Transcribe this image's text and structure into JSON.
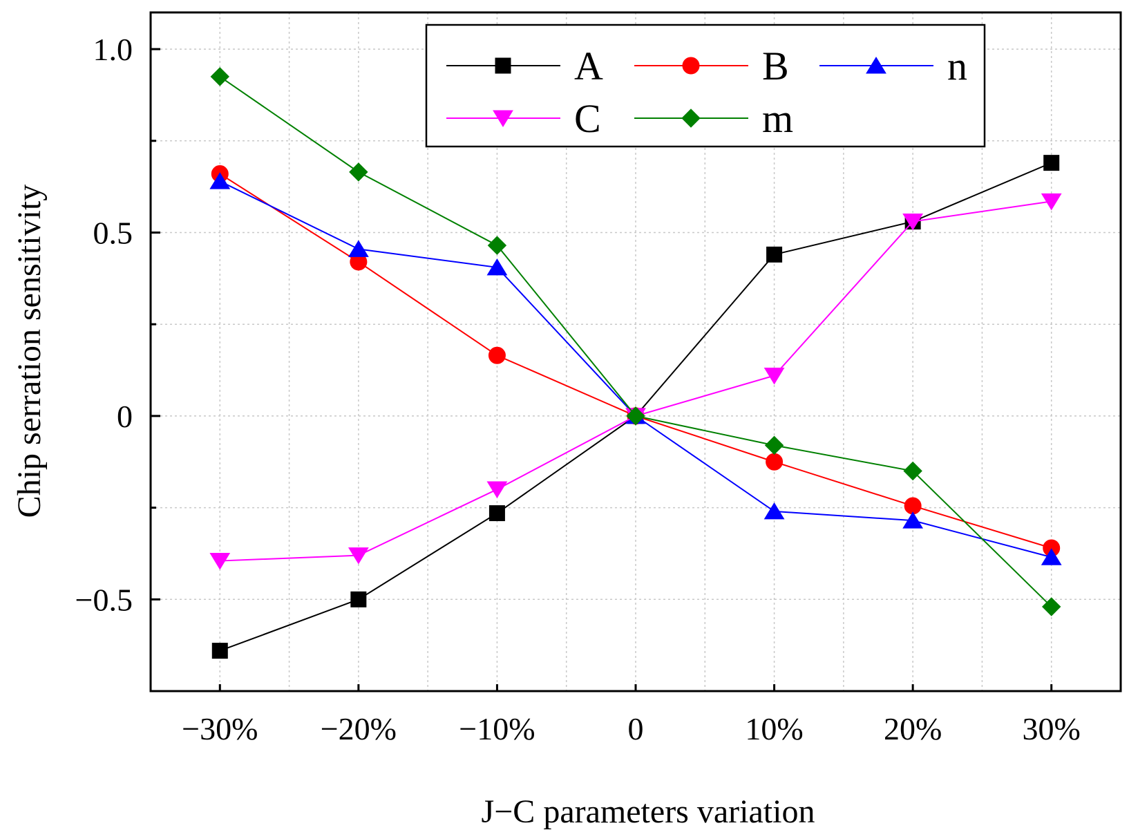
{
  "chart_data": {
    "type": "line",
    "title": "",
    "xlabel": "J−C parameters variation",
    "ylabel": "Chip serration sensitivity",
    "categories": [
      "−30%",
      "−20%",
      "−10%",
      "0",
      "10%",
      "20%",
      "30%"
    ],
    "x": [
      -30,
      -20,
      -10,
      0,
      10,
      20,
      30
    ],
    "xlim": [
      -35,
      35
    ],
    "ylim": [
      -0.75,
      1.1
    ],
    "yticks": [
      -0.5,
      0,
      0.5,
      1.0
    ],
    "ytick_labels": [
      "−0.5",
      "0",
      "0.5",
      "1.0"
    ],
    "minor_yticks": [
      -0.75,
      -0.25,
      0.25,
      0.75
    ],
    "grid": true,
    "legend_position": "top-center",
    "series": [
      {
        "name": "A",
        "color": "#000000",
        "marker": "square",
        "values": [
          -0.64,
          -0.5,
          -0.265,
          0,
          0.44,
          0.53,
          0.69
        ]
      },
      {
        "name": "B",
        "color": "#ff0000",
        "marker": "circle",
        "values": [
          0.66,
          0.42,
          0.165,
          0,
          -0.125,
          -0.245,
          -0.36
        ]
      },
      {
        "name": "n",
        "color": "#0000ff",
        "marker": "triangle-up",
        "values": [
          0.64,
          0.455,
          0.405,
          0,
          -0.26,
          -0.285,
          -0.385
        ]
      },
      {
        "name": "C",
        "color": "#ff00ff",
        "marker": "triangle-down",
        "values": [
          -0.395,
          -0.38,
          -0.2,
          0,
          0.11,
          0.53,
          0.585
        ]
      },
      {
        "name": "m",
        "color": "#008000",
        "marker": "diamond",
        "values": [
          0.925,
          0.665,
          0.465,
          0,
          -0.08,
          -0.15,
          -0.52
        ]
      }
    ]
  }
}
